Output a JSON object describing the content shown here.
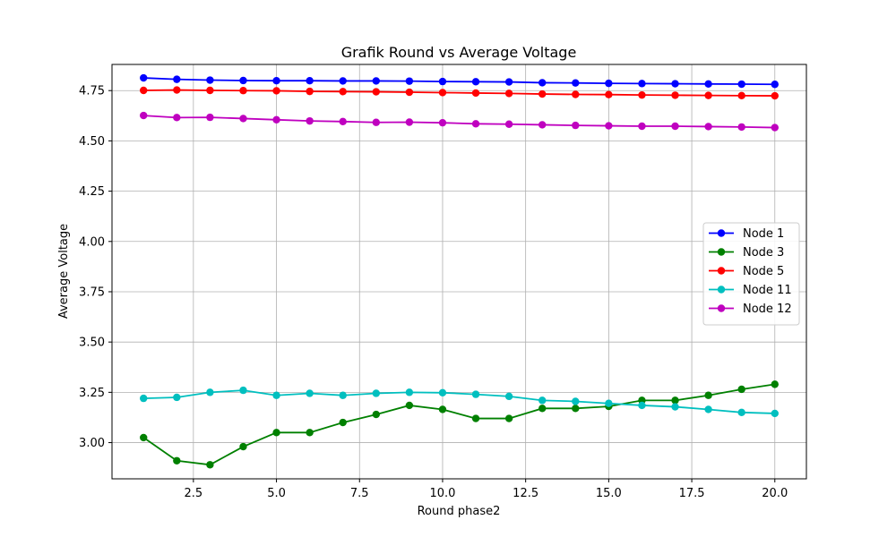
{
  "chart_data": {
    "type": "line",
    "title": "Grafik Round vs Average Voltage",
    "xlabel": "Round phase2",
    "ylabel": "Average Voltage",
    "xlim": [
      0.05,
      20.95
    ],
    "ylim": [
      2.82,
      4.88
    ],
    "xticks": [
      2.5,
      5.0,
      7.5,
      10.0,
      12.5,
      15.0,
      17.5,
      20.0
    ],
    "xtick_labels": [
      "2.5",
      "5.0",
      "7.5",
      "10.0",
      "12.5",
      "15.0",
      "17.5",
      "20.0"
    ],
    "yticks": [
      3.0,
      3.25,
      3.5,
      3.75,
      4.0,
      4.25,
      4.5,
      4.75
    ],
    "ytick_labels": [
      "3.00",
      "3.25",
      "3.50",
      "3.75",
      "4.00",
      "4.25",
      "4.50",
      "4.75"
    ],
    "grid": true,
    "legend_position": "center-right",
    "x": [
      1,
      2,
      3,
      4,
      5,
      6,
      7,
      8,
      9,
      10,
      11,
      12,
      13,
      14,
      15,
      16,
      17,
      18,
      19,
      20
    ],
    "series": [
      {
        "name": "Node 1",
        "color": "#0000ff",
        "values": [
          4.813,
          4.806,
          4.802,
          4.8,
          4.799,
          4.799,
          4.798,
          4.798,
          4.797,
          4.795,
          4.794,
          4.793,
          4.789,
          4.788,
          4.786,
          4.785,
          4.784,
          4.783,
          4.782,
          4.781
        ]
      },
      {
        "name": "Node 3",
        "color": "#008000",
        "values": [
          3.025,
          2.91,
          2.89,
          2.98,
          3.05,
          3.05,
          3.1,
          3.14,
          3.185,
          3.165,
          3.12,
          3.12,
          3.17,
          3.17,
          3.18,
          3.21,
          3.21,
          3.235,
          3.265,
          3.29
        ]
      },
      {
        "name": "Node 5",
        "color": "#ff0000",
        "values": [
          4.751,
          4.753,
          4.751,
          4.75,
          4.749,
          4.746,
          4.745,
          4.744,
          4.742,
          4.74,
          4.738,
          4.736,
          4.733,
          4.731,
          4.73,
          4.728,
          4.727,
          4.726,
          4.725,
          4.724
        ]
      },
      {
        "name": "Node 11",
        "color": "#00bfbf",
        "values": [
          3.22,
          3.225,
          3.25,
          3.26,
          3.235,
          3.245,
          3.235,
          3.245,
          3.25,
          3.248,
          3.24,
          3.23,
          3.21,
          3.205,
          3.195,
          3.185,
          3.178,
          3.165,
          3.15,
          3.145
        ]
      },
      {
        "name": "Node 12",
        "color": "#bf00bf",
        "values": [
          4.626,
          4.616,
          4.617,
          4.611,
          4.605,
          4.599,
          4.596,
          4.592,
          4.593,
          4.59,
          4.585,
          4.583,
          4.58,
          4.577,
          4.575,
          4.573,
          4.573,
          4.571,
          4.569,
          4.566
        ]
      }
    ]
  }
}
